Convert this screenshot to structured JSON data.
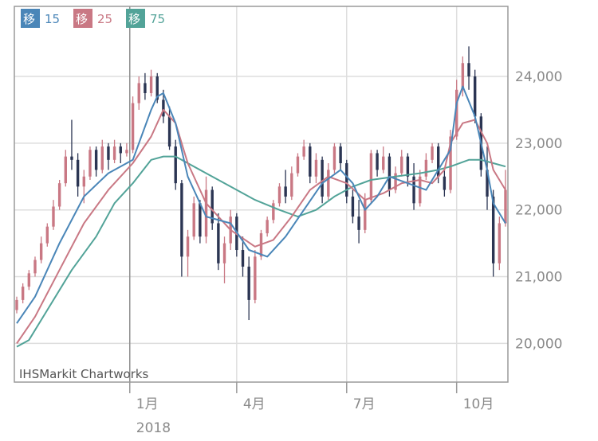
{
  "chart_data": {
    "type": "candlestick",
    "watermark": "IHSMarkit Chartworks",
    "legend": [
      {
        "tag": "移",
        "value": "15",
        "color": "#4a86b8"
      },
      {
        "tag": "移",
        "value": "25",
        "color": "#c97884"
      },
      {
        "tag": "移",
        "value": "75",
        "color": "#52a398"
      }
    ],
    "y_ticks": [
      {
        "value": 20000,
        "label": "20,000"
      },
      {
        "value": 21000,
        "label": "21,000"
      },
      {
        "value": 22000,
        "label": "22,000"
      },
      {
        "value": 23000,
        "label": "23,000"
      },
      {
        "value": 24000,
        "label": "24,000"
      }
    ],
    "ylim": [
      19420,
      25050
    ],
    "x_ticks": [
      {
        "month": 1,
        "label": "1月",
        "year_label": "2018"
      },
      {
        "month": 4,
        "label": "4月"
      },
      {
        "month": 7,
        "label": "7月"
      },
      {
        "month": 10,
        "label": "10月"
      }
    ],
    "xlim": [
      1,
      81
    ],
    "x_tick_positions": [
      19.5,
      37,
      55,
      73
    ],
    "colors": {
      "up": "#c97884",
      "down": "#2b3553",
      "ma15": "#4a86b8",
      "ma25": "#c97884",
      "ma75": "#52a398",
      "grid": "#dedede",
      "axis": "#9a9a9a"
    },
    "candles": [
      [
        20500,
        20700,
        20450,
        20650
      ],
      [
        20650,
        20900,
        20600,
        20850
      ],
      [
        20850,
        21100,
        20800,
        21050
      ],
      [
        21050,
        21300,
        21000,
        21250
      ],
      [
        21250,
        21600,
        21200,
        21500
      ],
      [
        21500,
        21800,
        21450,
        21750
      ],
      [
        21750,
        22150,
        21700,
        22050
      ],
      [
        22050,
        22450,
        22000,
        22400
      ],
      [
        22400,
        22900,
        22350,
        22800
      ],
      [
        22800,
        23350,
        22600,
        22750
      ],
      [
        22750,
        22850,
        22200,
        22350
      ],
      [
        22350,
        22600,
        22100,
        22500
      ],
      [
        22500,
        22950,
        22450,
        22900
      ],
      [
        22900,
        22950,
        22500,
        22600
      ],
      [
        22600,
        23050,
        22550,
        22950
      ],
      [
        22950,
        23000,
        22600,
        22750
      ],
      [
        22750,
        23050,
        22700,
        22950
      ],
      [
        22950,
        23000,
        22700,
        22850
      ],
      [
        22850,
        23000,
        22800,
        22900
      ],
      [
        22900,
        23700,
        22850,
        23600
      ],
      [
        23600,
        24000,
        23500,
        23900
      ],
      [
        23900,
        24050,
        23650,
        23750
      ],
      [
        23750,
        24100,
        23700,
        24000
      ],
      [
        24000,
        24050,
        23600,
        23650
      ],
      [
        23650,
        23800,
        23300,
        23400
      ],
      [
        23400,
        23550,
        22900,
        22950
      ],
      [
        22950,
        23050,
        22300,
        22400
      ],
      [
        22400,
        22450,
        21000,
        21300
      ],
      [
        21300,
        21700,
        21000,
        21600
      ],
      [
        21600,
        22200,
        21550,
        22100
      ],
      [
        22100,
        22150,
        21500,
        21600
      ],
      [
        21600,
        22500,
        21500,
        22300
      ],
      [
        22300,
        22350,
        21700,
        21800
      ],
      [
        21800,
        21950,
        21100,
        21200
      ],
      [
        21200,
        21600,
        20900,
        21500
      ],
      [
        21500,
        22000,
        21400,
        21900
      ],
      [
        21900,
        21950,
        21300,
        21400
      ],
      [
        21400,
        21600,
        21000,
        21150
      ],
      [
        21150,
        21300,
        20350,
        20650
      ],
      [
        20650,
        21400,
        20600,
        21300
      ],
      [
        21300,
        21700,
        21250,
        21650
      ],
      [
        21650,
        21900,
        21600,
        21850
      ],
      [
        21850,
        22150,
        21800,
        22100
      ],
      [
        22100,
        22400,
        22050,
        22350
      ],
      [
        22350,
        22600,
        22100,
        22200
      ],
      [
        22200,
        22650,
        22150,
        22550
      ],
      [
        22550,
        22850,
        22500,
        22800
      ],
      [
        22800,
        23050,
        22750,
        22950
      ],
      [
        22950,
        23000,
        22400,
        22500
      ],
      [
        22500,
        22850,
        22400,
        22750
      ],
      [
        22750,
        22800,
        22100,
        22200
      ],
      [
        22200,
        22700,
        22150,
        22600
      ],
      [
        22600,
        23000,
        22550,
        22950
      ],
      [
        22950,
        23000,
        22600,
        22700
      ],
      [
        22700,
        22750,
        22100,
        22200
      ],
      [
        22200,
        22300,
        21800,
        21900
      ],
      [
        21900,
        22150,
        21500,
        21700
      ],
      [
        21700,
        22250,
        21650,
        22150
      ],
      [
        22150,
        22900,
        22100,
        22850
      ],
      [
        22850,
        22900,
        22500,
        22600
      ],
      [
        22600,
        22950,
        22550,
        22800
      ],
      [
        22800,
        22850,
        22200,
        22300
      ],
      [
        22300,
        22650,
        22250,
        22550
      ],
      [
        22550,
        22900,
        22500,
        22800
      ],
      [
        22800,
        22850,
        22350,
        22500
      ],
      [
        22500,
        22700,
        22000,
        22100
      ],
      [
        22100,
        22600,
        22050,
        22500
      ],
      [
        22500,
        22850,
        22450,
        22750
      ],
      [
        22750,
        23000,
        22700,
        22950
      ],
      [
        22950,
        23000,
        22400,
        22500
      ],
      [
        22500,
        22600,
        22200,
        22300
      ],
      [
        22300,
        23200,
        22250,
        23100
      ],
      [
        23100,
        23950,
        23050,
        23800
      ],
      [
        23800,
        24300,
        23700,
        24200
      ],
      [
        24200,
        24450,
        23800,
        24000
      ],
      [
        24000,
        24100,
        23300,
        23400
      ],
      [
        23400,
        23450,
        22500,
        22600
      ],
      [
        22600,
        22950,
        22000,
        22200
      ],
      [
        22200,
        22300,
        21000,
        21200
      ],
      [
        21200,
        21900,
        21100,
        21800
      ],
      [
        21800,
        22600,
        21750,
        22300
      ]
    ],
    "ma15": [
      [
        1,
        20300
      ],
      [
        4,
        20700
      ],
      [
        8,
        21500
      ],
      [
        12,
        22200
      ],
      [
        16,
        22550
      ],
      [
        20,
        22750
      ],
      [
        23,
        23500
      ],
      [
        24,
        23700
      ],
      [
        25,
        23750
      ],
      [
        27,
        23300
      ],
      [
        29,
        22500
      ],
      [
        32,
        21900
      ],
      [
        36,
        21800
      ],
      [
        39,
        21400
      ],
      [
        42,
        21300
      ],
      [
        45,
        21600
      ],
      [
        48,
        22000
      ],
      [
        51,
        22400
      ],
      [
        54,
        22600
      ],
      [
        56,
        22400
      ],
      [
        58,
        22000
      ],
      [
        60,
        22200
      ],
      [
        62,
        22500
      ],
      [
        65,
        22400
      ],
      [
        68,
        22300
      ],
      [
        70,
        22600
      ],
      [
        72,
        22900
      ],
      [
        73,
        23600
      ],
      [
        74,
        23850
      ],
      [
        76,
        23400
      ],
      [
        78,
        22600
      ],
      [
        79,
        22100
      ],
      [
        81,
        21800
      ]
    ],
    "ma25": [
      [
        1,
        20000
      ],
      [
        4,
        20400
      ],
      [
        8,
        21100
      ],
      [
        12,
        21800
      ],
      [
        16,
        22300
      ],
      [
        20,
        22700
      ],
      [
        23,
        23100
      ],
      [
        25,
        23500
      ],
      [
        27,
        23300
      ],
      [
        29,
        22700
      ],
      [
        32,
        22100
      ],
      [
        36,
        21700
      ],
      [
        40,
        21450
      ],
      [
        43,
        21550
      ],
      [
        46,
        21900
      ],
      [
        49,
        22300
      ],
      [
        52,
        22500
      ],
      [
        55,
        22400
      ],
      [
        58,
        22150
      ],
      [
        61,
        22250
      ],
      [
        64,
        22400
      ],
      [
        67,
        22450
      ],
      [
        69,
        22400
      ],
      [
        71,
        22600
      ],
      [
        72,
        23000
      ],
      [
        74,
        23300
      ],
      [
        76,
        23350
      ],
      [
        78,
        23000
      ],
      [
        79,
        22600
      ],
      [
        81,
        22300
      ]
    ],
    "ma75": [
      [
        1,
        19950
      ],
      [
        3,
        20050
      ],
      [
        6,
        20500
      ],
      [
        10,
        21100
      ],
      [
        14,
        21600
      ],
      [
        17,
        22100
      ],
      [
        20,
        22400
      ],
      [
        23,
        22750
      ],
      [
        25,
        22800
      ],
      [
        27,
        22800
      ],
      [
        29,
        22700
      ],
      [
        32,
        22550
      ],
      [
        36,
        22350
      ],
      [
        40,
        22150
      ],
      [
        44,
        22000
      ],
      [
        47,
        21900
      ],
      [
        50,
        22000
      ],
      [
        53,
        22200
      ],
      [
        56,
        22350
      ],
      [
        59,
        22450
      ],
      [
        63,
        22500
      ],
      [
        67,
        22550
      ],
      [
        70,
        22600
      ],
      [
        72,
        22650
      ],
      [
        75,
        22750
      ],
      [
        77,
        22750
      ],
      [
        79,
        22700
      ],
      [
        81,
        22650
      ]
    ]
  }
}
